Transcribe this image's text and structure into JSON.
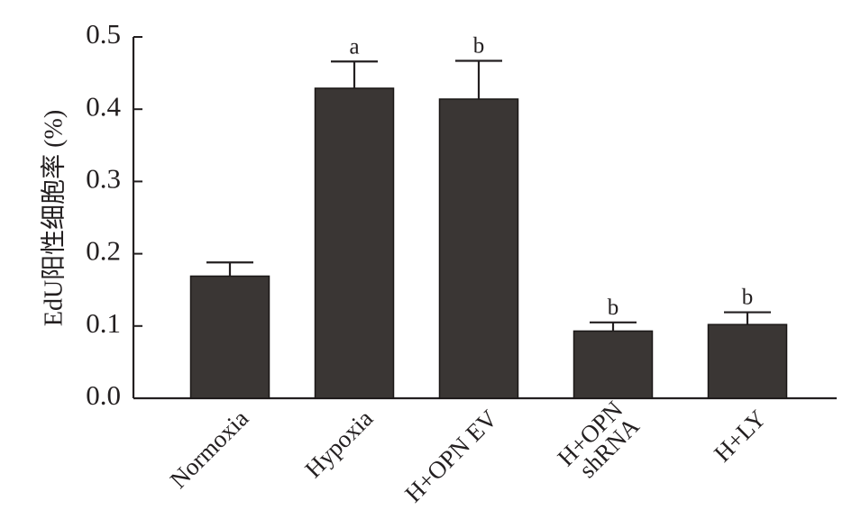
{
  "chart_data": {
    "type": "bar",
    "title": "",
    "xlabel": "",
    "ylabel": "EdU阳性细胞率 (%)",
    "ylim": [
      0,
      0.5
    ],
    "yticks": [
      "0.0",
      "0.1",
      "0.2",
      "0.3",
      "0.4",
      "0.5"
    ],
    "grid": false,
    "categories": [
      {
        "lines": [
          "Normoxia"
        ]
      },
      {
        "lines": [
          "Hypoxia"
        ]
      },
      {
        "lines": [
          "H+OPN EV"
        ]
      },
      {
        "lines": [
          "H+OPN",
          "shRNA"
        ]
      },
      {
        "lines": [
          "H+LY"
        ]
      }
    ],
    "values": [
      0.169,
      0.429,
      0.414,
      0.093,
      0.102
    ],
    "error_upper": [
      0.019,
      0.037,
      0.053,
      0.012,
      0.017
    ],
    "significance": [
      "",
      "a",
      "b",
      "b",
      "b"
    ],
    "colors": {
      "bar": "#3a3634",
      "axis": "#231f20"
    }
  }
}
